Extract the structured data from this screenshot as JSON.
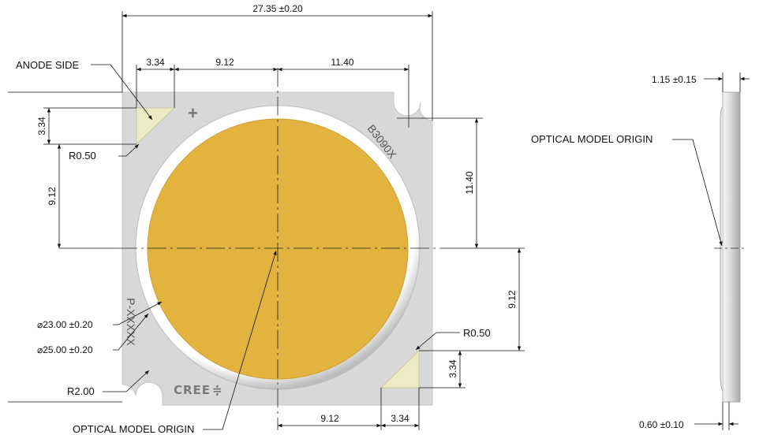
{
  "dimensions": {
    "overall_width": "27.35 ±0.20",
    "top_anode_width": "3.34",
    "top_left_to_center": "9.12",
    "top_center_to_hole": "11.40",
    "left_anode_height": "3.34",
    "left_anode_to_center": "9.12",
    "right_hole_to_center": "11.40",
    "right_center_to_cathode": "9.12",
    "right_cathode_height": "3.34",
    "bottom_center_to_cathode": "9.12",
    "bottom_cathode_width": "3.34",
    "les_diameter": "23.00 ±0.20",
    "dam_diameter": "25.00 ±0.20",
    "corner_radius_anode": "R0.50",
    "corner_radius_cathode": "R0.50",
    "hole_radius": "R2.00",
    "thickness_total": "1.15 ±0.15",
    "thickness_substrate": "0.60 ±0.10"
  },
  "labels": {
    "anode_side": "ANODE SIDE",
    "optical_origin_front": "OPTICAL MODEL ORIGIN",
    "optical_origin_side": "OPTICAL MODEL ORIGIN",
    "diameter_symbol": "⌀"
  },
  "markings": {
    "plus": "+",
    "part_number": "B3090X",
    "lot_code": "P-XXXXX",
    "logo": "CREE"
  },
  "colors": {
    "substrate": "#d8d8d8",
    "phosphor": "#e2b33f",
    "dam": "#f2f2f2",
    "pad": "#ecebc4",
    "line": "#111111"
  }
}
